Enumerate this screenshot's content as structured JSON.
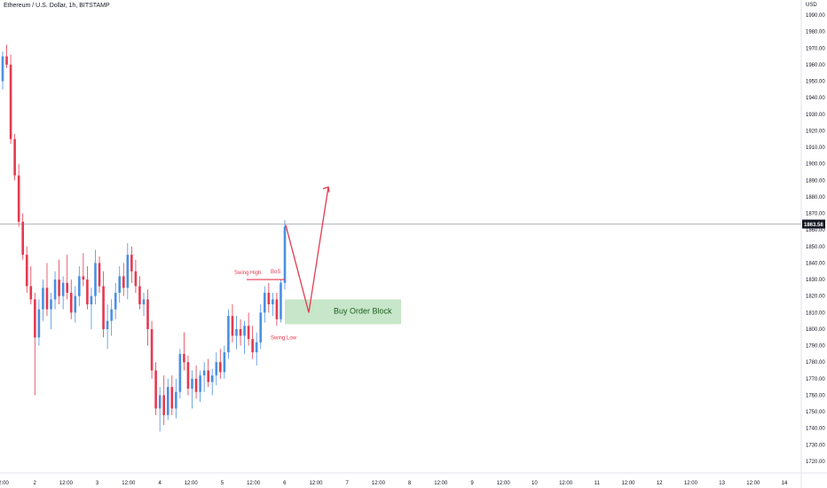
{
  "header": {
    "symbol_title": "Ethereum / U.S. Dollar, 1h, BITSTAMP",
    "currency": "USD"
  },
  "chart_data": {
    "type": "candlestick",
    "title": "Ethereum / U.S. Dollar, 1h, BITSTAMP",
    "ylabel": "USD",
    "ylim": [
      1715,
      1995
    ],
    "y_ticks": [
      "1720.00",
      "1730.00",
      "1740.00",
      "1750.00",
      "1760.00",
      "1770.00",
      "1780.00",
      "1790.00",
      "1800.00",
      "1810.00",
      "1820.00",
      "1830.00",
      "1840.00",
      "1850.00",
      "1860.00",
      "1870.00",
      "1880.00",
      "1890.00",
      "1900.00",
      "1910.00",
      "1920.00",
      "1930.00",
      "1940.00",
      "1950.00",
      "1960.00",
      "1970.00",
      "1980.00",
      "1990.00"
    ],
    "x_ticks": [
      "2:00",
      "2",
      "12:00",
      "3",
      "12:00",
      "4",
      "12:00",
      "5",
      "12:00",
      "6",
      "12:00",
      "7",
      "12:00",
      "8",
      "12:00",
      "9",
      "12:00",
      "10",
      "12:00",
      "11",
      "12:00",
      "12",
      "12:00",
      "13",
      "12:00",
      "14"
    ],
    "current_price": "1863.58",
    "current_price_value": 1863.58,
    "grid": false,
    "colors": {
      "up": "#4a90e2",
      "down": "#e53950",
      "price_line": "#9aa0a6",
      "zone": "#c8e6c9",
      "annotation": "#e53950"
    },
    "candles": [
      [
        1950,
        1968,
        1945,
        1965
      ],
      [
        1965,
        1972,
        1958,
        1960
      ],
      [
        1960,
        1966,
        1912,
        1915
      ],
      [
        1915,
        1918,
        1890,
        1893
      ],
      [
        1893,
        1900,
        1862,
        1865
      ],
      [
        1865,
        1870,
        1842,
        1845
      ],
      [
        1845,
        1850,
        1822,
        1826
      ],
      [
        1826,
        1838,
        1815,
        1818
      ],
      [
        1818,
        1822,
        1760,
        1795
      ],
      [
        1795,
        1818,
        1790,
        1812
      ],
      [
        1812,
        1830,
        1805,
        1825
      ],
      [
        1825,
        1840,
        1808,
        1812
      ],
      [
        1812,
        1822,
        1800,
        1818
      ],
      [
        1818,
        1835,
        1812,
        1830
      ],
      [
        1830,
        1842,
        1815,
        1820
      ],
      [
        1820,
        1832,
        1812,
        1828
      ],
      [
        1828,
        1845,
        1818,
        1822
      ],
      [
        1822,
        1830,
        1806,
        1810
      ],
      [
        1810,
        1826,
        1804,
        1820
      ],
      [
        1820,
        1838,
        1814,
        1832
      ],
      [
        1832,
        1846,
        1826,
        1830
      ],
      [
        1830,
        1838,
        1812,
        1815
      ],
      [
        1815,
        1825,
        1800,
        1820
      ],
      [
        1820,
        1848,
        1815,
        1840
      ],
      [
        1840,
        1844,
        1822,
        1826
      ],
      [
        1826,
        1835,
        1795,
        1800
      ],
      [
        1800,
        1815,
        1788,
        1805
      ],
      [
        1805,
        1818,
        1796,
        1812
      ],
      [
        1812,
        1828,
        1806,
        1822
      ],
      [
        1822,
        1838,
        1816,
        1832
      ],
      [
        1832,
        1840,
        1820,
        1825
      ],
      [
        1825,
        1852,
        1818,
        1845
      ],
      [
        1845,
        1850,
        1828,
        1835
      ],
      [
        1835,
        1842,
        1822,
        1826
      ],
      [
        1826,
        1832,
        1812,
        1815
      ],
      [
        1815,
        1822,
        1808,
        1818
      ],
      [
        1818,
        1824,
        1790,
        1800
      ],
      [
        1800,
        1805,
        1770,
        1775
      ],
      [
        1775,
        1780,
        1748,
        1752
      ],
      [
        1752,
        1765,
        1738,
        1760
      ],
      [
        1760,
        1772,
        1742,
        1748
      ],
      [
        1748,
        1770,
        1745,
        1765
      ],
      [
        1765,
        1772,
        1748,
        1752
      ],
      [
        1752,
        1770,
        1746,
        1762
      ],
      [
        1762,
        1788,
        1758,
        1785
      ],
      [
        1785,
        1798,
        1775,
        1780
      ],
      [
        1780,
        1784,
        1760,
        1764
      ],
      [
        1764,
        1775,
        1752,
        1770
      ],
      [
        1770,
        1778,
        1758,
        1762
      ],
      [
        1762,
        1775,
        1756,
        1772
      ],
      [
        1772,
        1780,
        1762,
        1775
      ],
      [
        1775,
        1782,
        1765,
        1768
      ],
      [
        1768,
        1776,
        1760,
        1772
      ],
      [
        1772,
        1786,
        1766,
        1780
      ],
      [
        1780,
        1788,
        1770,
        1774
      ],
      [
        1774,
        1790,
        1770,
        1786
      ],
      [
        1786,
        1812,
        1782,
        1808
      ],
      [
        1808,
        1815,
        1792,
        1796
      ],
      [
        1796,
        1808,
        1788,
        1800
      ],
      [
        1800,
        1806,
        1790,
        1796
      ],
      [
        1796,
        1805,
        1785,
        1802
      ],
      [
        1802,
        1810,
        1790,
        1794
      ],
      [
        1794,
        1802,
        1782,
        1786
      ],
      [
        1786,
        1798,
        1778,
        1792
      ],
      [
        1792,
        1815,
        1788,
        1810
      ],
      [
        1810,
        1826,
        1804,
        1822
      ],
      [
        1822,
        1828,
        1810,
        1815
      ],
      [
        1815,
        1822,
        1808,
        1818
      ],
      [
        1818,
        1822,
        1802,
        1806
      ],
      [
        1806,
        1830,
        1804,
        1828
      ],
      [
        1828,
        1866,
        1824,
        1862
      ]
    ],
    "annotations": [
      {
        "text": "Swing High",
        "price": 1830
      },
      {
        "text": "BoS",
        "price": 1830
      },
      {
        "text": "Swing Low",
        "price": 1798
      },
      {
        "text": "Buy Order Block",
        "zone": [
          1803,
          1818
        ]
      }
    ],
    "projection": [
      [
        1863,
        null
      ],
      [
        1810,
        null
      ],
      [
        1885,
        null
      ]
    ]
  }
}
